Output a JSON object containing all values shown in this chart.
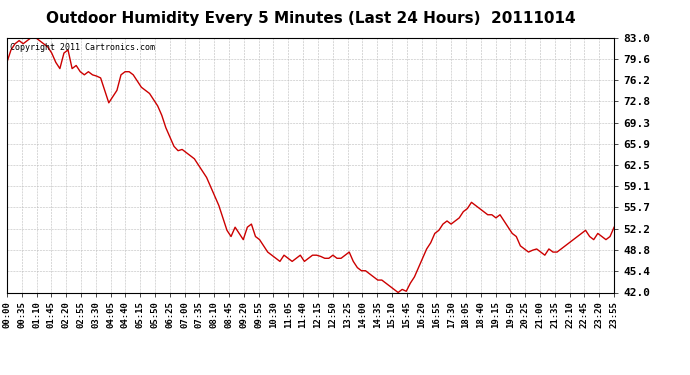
{
  "title": "Outdoor Humidity Every 5 Minutes (Last 24 Hours)  20111014",
  "copyright_text": "Copyright 2011 Cartronics.com",
  "line_color": "#cc0000",
  "background_color": "#ffffff",
  "grid_color": "#bbbbbb",
  "title_fontsize": 11,
  "ylabel_fontsize": 8,
  "xlabel_fontsize": 6.5,
  "ylim": [
    42.0,
    83.0
  ],
  "yticks": [
    42.0,
    45.4,
    48.8,
    52.2,
    55.7,
    59.1,
    62.5,
    65.9,
    69.3,
    72.8,
    76.2,
    79.6,
    83.0
  ],
  "xtick_labels": [
    "00:00",
    "00:35",
    "01:10",
    "01:45",
    "02:20",
    "02:55",
    "03:30",
    "04:05",
    "04:40",
    "05:15",
    "05:50",
    "06:25",
    "07:00",
    "07:35",
    "08:10",
    "08:45",
    "09:20",
    "09:55",
    "10:30",
    "11:05",
    "11:40",
    "12:15",
    "12:50",
    "13:25",
    "14:00",
    "14:35",
    "15:10",
    "15:45",
    "16:20",
    "16:55",
    "17:30",
    "18:05",
    "18:40",
    "19:15",
    "19:50",
    "20:25",
    "21:00",
    "21:35",
    "22:10",
    "22:45",
    "23:20",
    "23:55"
  ],
  "humidity_values": [
    79.0,
    81.0,
    82.0,
    82.5,
    82.0,
    82.5,
    83.0,
    83.0,
    82.5,
    82.0,
    81.5,
    80.5,
    79.0,
    78.0,
    80.5,
    81.0,
    78.0,
    78.5,
    77.5,
    77.0,
    77.5,
    77.0,
    76.8,
    76.5,
    74.5,
    72.5,
    73.5,
    74.5,
    77.0,
    77.5,
    77.5,
    77.0,
    76.0,
    75.0,
    74.5,
    74.0,
    73.0,
    72.0,
    70.5,
    68.5,
    67.0,
    65.5,
    64.8,
    65.0,
    64.5,
    64.0,
    63.5,
    62.5,
    61.5,
    60.5,
    59.0,
    57.5,
    56.0,
    54.0,
    52.0,
    51.0,
    52.5,
    51.5,
    50.5,
    52.5,
    53.0,
    51.0,
    50.5,
    49.5,
    48.5,
    48.0,
    47.5,
    47.0,
    48.0,
    47.5,
    47.0,
    47.5,
    48.0,
    47.0,
    47.5,
    48.0,
    48.0,
    47.8,
    47.5,
    47.5,
    48.0,
    47.5,
    47.5,
    48.0,
    48.5,
    47.0,
    46.0,
    45.5,
    45.5,
    45.0,
    44.5,
    44.0,
    44.0,
    43.5,
    43.0,
    42.5,
    42.0,
    42.5,
    42.2,
    43.5,
    44.5,
    46.0,
    47.5,
    49.0,
    50.0,
    51.5,
    52.0,
    53.0,
    53.5,
    53.0,
    53.5,
    54.0,
    55.0,
    55.5,
    56.5,
    56.0,
    55.5,
    55.0,
    54.5,
    54.5,
    54.0,
    54.5,
    53.5,
    52.5,
    51.5,
    51.0,
    49.5,
    49.0,
    48.5,
    48.8,
    49.0,
    48.5,
    48.0,
    49.0,
    48.5,
    48.5,
    49.0,
    49.5,
    50.0,
    50.5,
    51.0,
    51.5,
    52.0,
    51.0,
    50.5,
    51.5,
    51.0,
    50.5,
    51.0,
    52.5
  ]
}
